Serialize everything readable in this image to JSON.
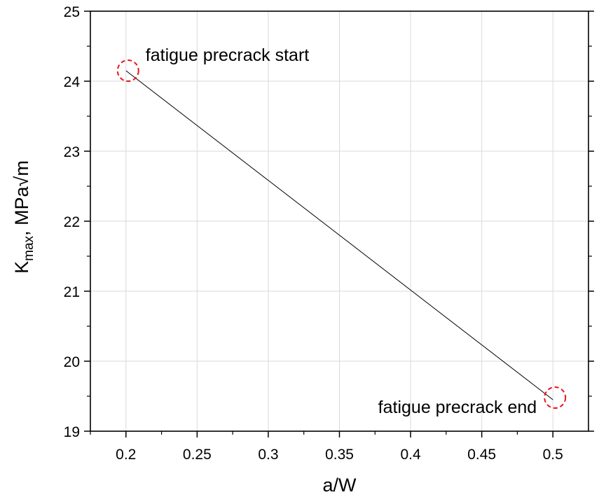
{
  "chart_data": {
    "type": "line",
    "title": "",
    "xlabel": "a/W",
    "ylabel": {
      "main": "K",
      "subscript": "max",
      "unit": ", MPa√m"
    },
    "xlim": [
      0.175,
      0.525
    ],
    "ylim": [
      19,
      25
    ],
    "xticks": [
      {
        "value": 0.2,
        "label": "0.2"
      },
      {
        "value": 0.25,
        "label": "0.25"
      },
      {
        "value": 0.3,
        "label": "0.3"
      },
      {
        "value": 0.35,
        "label": "0.35"
      },
      {
        "value": 0.4,
        "label": "0.4"
      },
      {
        "value": 0.45,
        "label": "0.45"
      },
      {
        "value": 0.5,
        "label": "0.5"
      }
    ],
    "yticks": [
      {
        "value": 19,
        "label": "19"
      },
      {
        "value": 20,
        "label": "20"
      },
      {
        "value": 21,
        "label": "21"
      },
      {
        "value": 22,
        "label": "22"
      },
      {
        "value": 23,
        "label": "23"
      },
      {
        "value": 24,
        "label": "24"
      },
      {
        "value": 25,
        "label": "25"
      }
    ],
    "grid": true,
    "series": [
      {
        "x": [
          0.2,
          0.5
        ],
        "y": [
          24.15,
          19.45
        ],
        "color": "#000000"
      }
    ],
    "annotations": [
      {
        "text": "fatigue precrack start",
        "x": 0.2,
        "y": 24.15,
        "marker_color": "#e8141b"
      },
      {
        "text": "fatigue precrack end",
        "x": 0.5,
        "y": 19.48,
        "marker_color": "#e8141b"
      }
    ],
    "colors": {
      "line": "#000000",
      "grid": "#d9d9d9",
      "marker": "#e8141b",
      "axis": "#000000"
    }
  }
}
